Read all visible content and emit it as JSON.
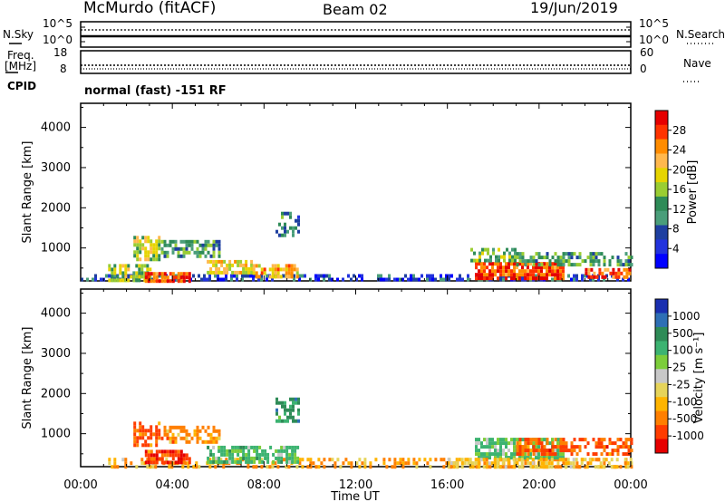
{
  "header": {
    "title": "McMurdo (fitACF)",
    "beam": "Beam 02",
    "date": "19/Jun/2019"
  },
  "noise_panel": {
    "left_label": "N.Sky",
    "right_label": "N.Search",
    "left_ticks": [
      "10^5",
      "10^0"
    ],
    "right_ticks": [
      "10^5",
      "10^0"
    ]
  },
  "freq_panel": {
    "left_label_1": "Freq.",
    "left_label_2": "[MHz]",
    "right_label": "Nave",
    "left_ticks": [
      "18",
      "8"
    ],
    "right_ticks": [
      "60",
      "0"
    ]
  },
  "cpid": {
    "label": "CPID",
    "text": "normal (fast) -151 RF"
  },
  "x_axis": {
    "label": "Time UT",
    "ticks": [
      "00:00",
      "04:00",
      "08:00",
      "12:00",
      "16:00",
      "20:00",
      "00:00"
    ]
  },
  "power_colorbar": {
    "label": "Power [dB]",
    "ticks": [
      "28",
      "24",
      "20",
      "16",
      "12",
      "8",
      "4"
    ],
    "colors": [
      "#e60000",
      "#ff3300",
      "#ff8c00",
      "#ffb84d",
      "#e6d400",
      "#9acd32",
      "#2e8b57",
      "#4a9e7a",
      "#1e3fa0",
      "#2233dd",
      "#0000ff"
    ]
  },
  "velocity_colorbar": {
    "label": "Velocity [m s⁻¹]",
    "ticks": [
      "1000",
      "500",
      "100",
      "25",
      "-25",
      "-100",
      "-500",
      "-1000"
    ],
    "colors": [
      "#1a2fb0",
      "#2e6fb5",
      "#2e8b57",
      "#3cb371",
      "#7ccd3a",
      "#c8c8c8",
      "#e6d45a",
      "#ffb400",
      "#ff7f00",
      "#ff3c00",
      "#e60000"
    ]
  },
  "chart_data": [
    {
      "type": "heatmap",
      "title": "Power",
      "xlabel": "Time UT",
      "ylabel": "Slant Range [km]",
      "x_ticks": [
        "00:00",
        "04:00",
        "08:00",
        "12:00",
        "16:00",
        "20:00",
        "00:00"
      ],
      "y_ticks": [
        1000,
        2000,
        3000,
        4000
      ],
      "xlim": [
        0,
        24
      ],
      "ylim": [
        180,
        4600
      ],
      "colorbar": {
        "label": "Power [dB]",
        "range": [
          0,
          32
        ]
      },
      "regions": [
        {
          "t": [
            0.0,
            24.0
          ],
          "r": [
            180,
            350
          ],
          "value": 6,
          "density": 0.55
        },
        {
          "t": [
            1.2,
            3.0
          ],
          "r": [
            180,
            600
          ],
          "value": 16,
          "density": 0.6
        },
        {
          "t": [
            2.8,
            4.8
          ],
          "r": [
            180,
            400
          ],
          "value": 28,
          "density": 0.85
        },
        {
          "t": [
            2.3,
            3.4
          ],
          "r": [
            700,
            1300
          ],
          "value": 18,
          "density": 0.75
        },
        {
          "t": [
            3.5,
            6.0
          ],
          "r": [
            800,
            1200
          ],
          "value": 12,
          "density": 0.6
        },
        {
          "t": [
            5.5,
            7.5
          ],
          "r": [
            400,
            700
          ],
          "value": 20,
          "density": 0.7
        },
        {
          "t": [
            7.5,
            9.5
          ],
          "r": [
            250,
            600
          ],
          "value": 22,
          "density": 0.7
        },
        {
          "t": [
            8.5,
            9.5
          ],
          "r": [
            1300,
            1900
          ],
          "value": 10,
          "density": 0.5
        },
        {
          "t": [
            17.2,
            21.0
          ],
          "r": [
            250,
            650
          ],
          "value": 28,
          "density": 0.85
        },
        {
          "t": [
            17.0,
            19.0
          ],
          "r": [
            650,
            1000
          ],
          "value": 14,
          "density": 0.6
        },
        {
          "t": [
            19.0,
            24.0
          ],
          "r": [
            600,
            900
          ],
          "value": 12,
          "density": 0.55
        },
        {
          "t": [
            22.0,
            24.0
          ],
          "r": [
            250,
            500
          ],
          "value": 26,
          "density": 0.7
        }
      ]
    },
    {
      "type": "heatmap",
      "title": "Velocity",
      "xlabel": "Time UT",
      "ylabel": "Slant Range [km]",
      "x_ticks": [
        "00:00",
        "04:00",
        "08:00",
        "12:00",
        "16:00",
        "20:00",
        "00:00"
      ],
      "y_ticks": [
        1000,
        2000,
        3000,
        4000
      ],
      "xlim": [
        0,
        24
      ],
      "ylim": [
        180,
        4600
      ],
      "colorbar": {
        "label": "Velocity [m s⁻¹]",
        "levels": [
          1000,
          500,
          100,
          25,
          -25,
          -100,
          -500,
          -1000
        ]
      },
      "regions": [
        {
          "t": [
            1.2,
            24.0
          ],
          "r": [
            180,
            400
          ],
          "value": -100,
          "density": 0.45
        },
        {
          "t": [
            2.3,
            3.4
          ],
          "r": [
            700,
            1300
          ],
          "value": -300,
          "density": 0.7
        },
        {
          "t": [
            3.5,
            6.0
          ],
          "r": [
            800,
            1200
          ],
          "value": -150,
          "density": 0.55
        },
        {
          "t": [
            2.8,
            4.8
          ],
          "r": [
            300,
            600
          ],
          "value": -400,
          "density": 0.75
        },
        {
          "t": [
            5.5,
            9.5
          ],
          "r": [
            300,
            700
          ],
          "value": 150,
          "density": 0.7
        },
        {
          "t": [
            8.5,
            9.5
          ],
          "r": [
            1300,
            1900
          ],
          "value": 300,
          "density": 0.5
        },
        {
          "t": [
            17.2,
            21.0
          ],
          "r": [
            400,
            900
          ],
          "value": 120,
          "density": 0.8
        },
        {
          "t": [
            19.0,
            24.0
          ],
          "r": [
            500,
            900
          ],
          "value": -300,
          "density": 0.6
        },
        {
          "t": [
            16.0,
            24.0
          ],
          "r": [
            180,
            400
          ],
          "value": -50,
          "density": 0.5
        }
      ]
    }
  ]
}
